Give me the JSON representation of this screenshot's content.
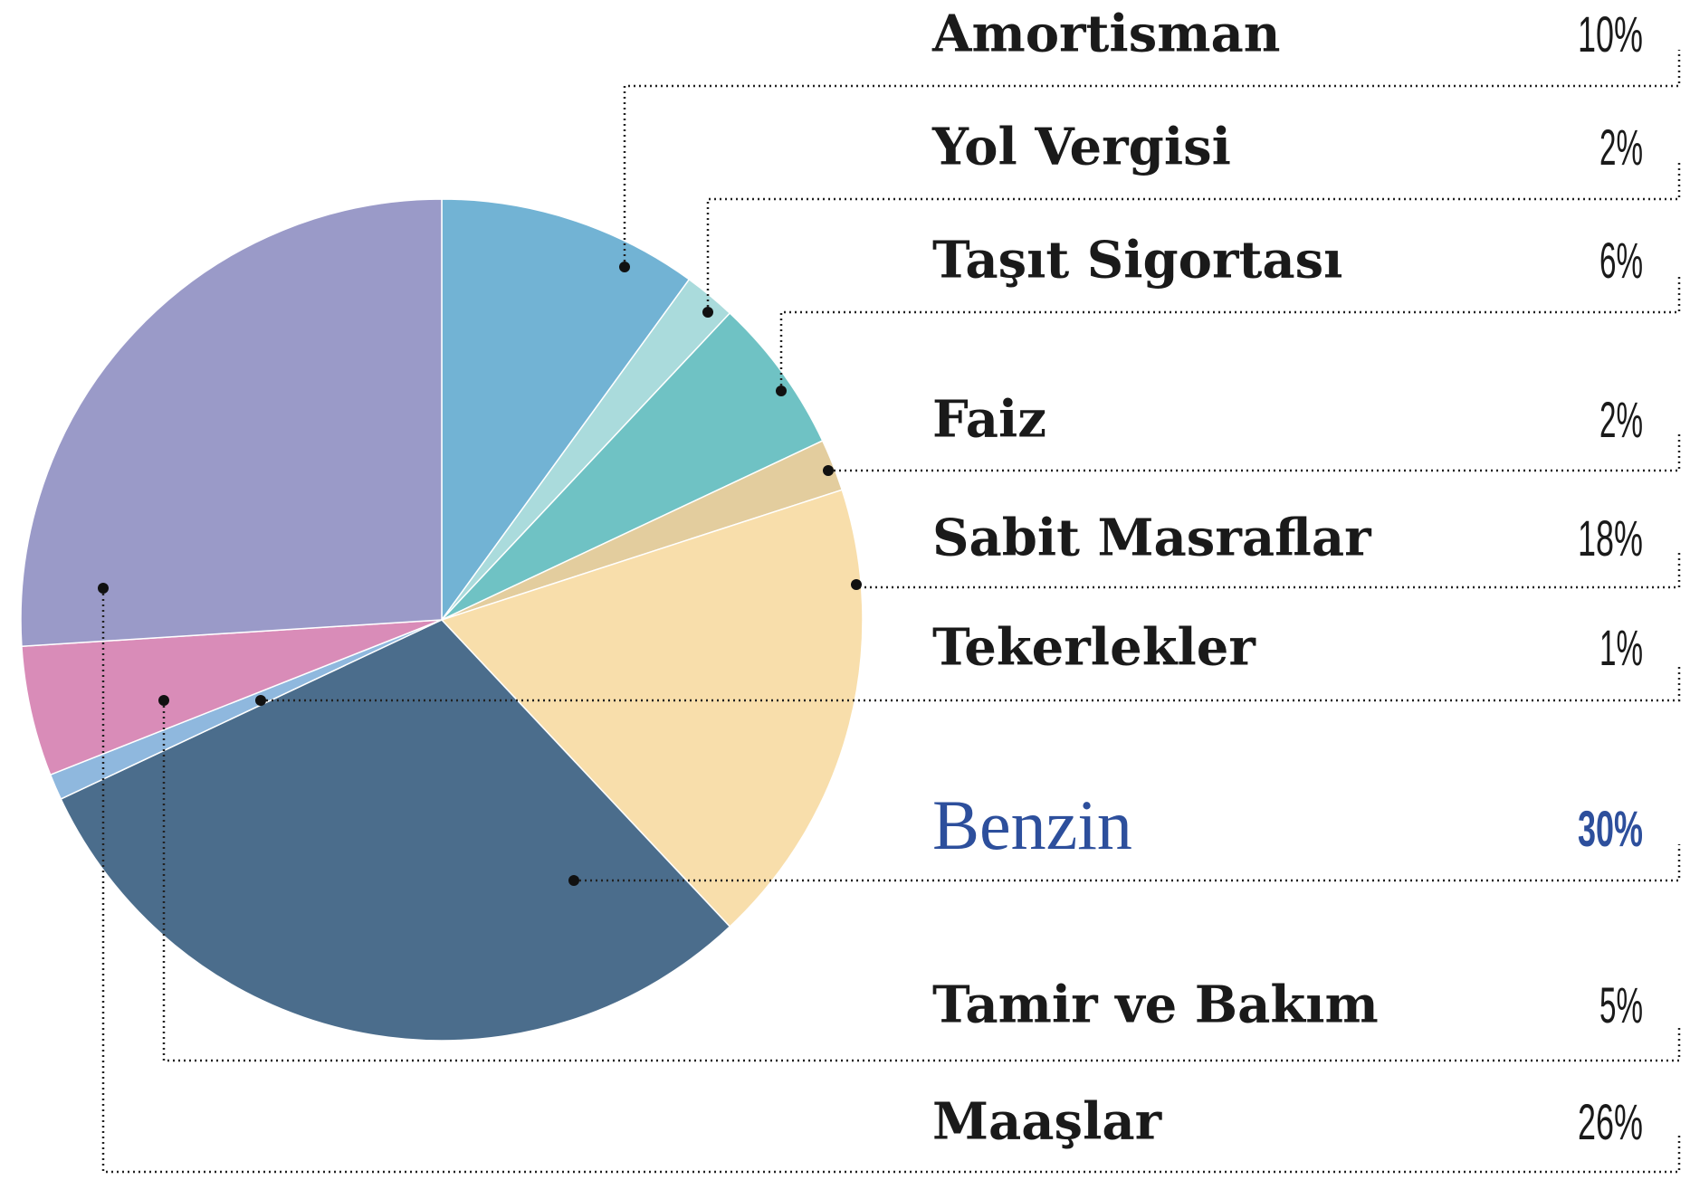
{
  "chart_data": {
    "type": "pie",
    "categories": [
      "Amortisman",
      "Yol Vergisi",
      "Taşıt Sigortası",
      "Faiz",
      "Sabit Masraflar",
      "Benzin",
      "Tekerlekler",
      "Tamir ve Bakım",
      "Maaşlar"
    ],
    "values": [
      10,
      2,
      6,
      2,
      18,
      30,
      1,
      5,
      26
    ],
    "value_labels": [
      "10%",
      "2%",
      "6%",
      "2%",
      "18%",
      "30%",
      "1%",
      "5%",
      "26%"
    ],
    "colors": [
      "#72b3d4",
      "#aadbdc",
      "#6fc2c4",
      "#e3cd9e",
      "#f8deab",
      "#4b6d8c",
      "#8fb8de",
      "#d98cb8",
      "#9a9ac8"
    ]
  }
}
